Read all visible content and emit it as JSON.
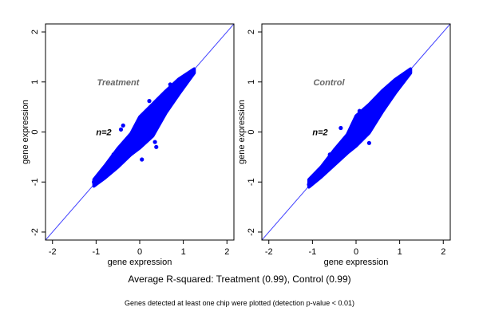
{
  "chart_data": [
    {
      "type": "scatter",
      "panel_label": "Treatment",
      "annotation": "n=2",
      "xlabel": "gene expression",
      "ylabel": "gene expression",
      "xlim": [
        -2.16,
        2.16
      ],
      "ylim": [
        -2.16,
        2.16
      ],
      "ticks": [
        -2,
        -1,
        0,
        1,
        2
      ],
      "reference_line": "y = x",
      "color": "#0000ff",
      "line_color": "#4040ff",
      "label_color": "#666666",
      "cloud_envelope": {
        "x": [
          -1.05,
          -0.8,
          -0.5,
          -0.2,
          0.0,
          0.3,
          0.6,
          0.9,
          1.25
        ],
        "lower": [
          -1.08,
          -0.92,
          -0.7,
          -0.45,
          -0.32,
          -0.08,
          0.38,
          0.76,
          1.18
        ],
        "upper": [
          -0.95,
          -0.68,
          -0.33,
          -0.03,
          0.3,
          0.56,
          0.82,
          1.06,
          1.26
        ]
      },
      "points": [
        [
          0.22,
          0.62
        ],
        [
          -0.38,
          0.13
        ],
        [
          -0.43,
          0.05
        ],
        [
          0.38,
          -0.3
        ],
        [
          0.35,
          -0.2
        ],
        [
          0.05,
          -0.55
        ],
        [
          0.7,
          0.95
        ],
        [
          -1.05,
          -1.0
        ],
        [
          1.22,
          1.23
        ],
        [
          0.55,
          0.5
        ],
        [
          -0.6,
          -0.45
        ],
        [
          0.12,
          0.1
        ]
      ]
    },
    {
      "type": "scatter",
      "panel_label": "Control",
      "annotation": "n=2",
      "xlabel": "gene expression",
      "ylabel": "gene expression",
      "xlim": [
        -2.16,
        2.16
      ],
      "ylim": [
        -2.16,
        2.16
      ],
      "ticks": [
        -2,
        -1,
        0,
        1,
        2
      ],
      "reference_line": "y = x",
      "color": "#0000ff",
      "line_color": "#4040ff",
      "label_color": "#666666",
      "cloud_envelope": {
        "x": [
          -1.08,
          -0.8,
          -0.5,
          -0.2,
          0.0,
          0.3,
          0.6,
          0.9,
          1.25
        ],
        "lower": [
          -1.1,
          -0.9,
          -0.66,
          -0.42,
          -0.28,
          -0.02,
          0.4,
          0.78,
          1.18
        ],
        "upper": [
          -0.95,
          -0.7,
          -0.36,
          -0.05,
          0.32,
          0.55,
          0.82,
          1.05,
          1.26
        ]
      },
      "points": [
        [
          -0.35,
          0.08
        ],
        [
          0.3,
          -0.22
        ],
        [
          0.08,
          0.42
        ],
        [
          -1.08,
          -1.05
        ],
        [
          1.22,
          1.23
        ],
        [
          0.55,
          0.5
        ],
        [
          -0.6,
          -0.45
        ]
      ]
    }
  ],
  "subtitle": "Average R-squared: Treatment (0.99), Control (0.99)",
  "footnote": "Genes detected at least one chip were plotted (detection p-value < 0.01)"
}
